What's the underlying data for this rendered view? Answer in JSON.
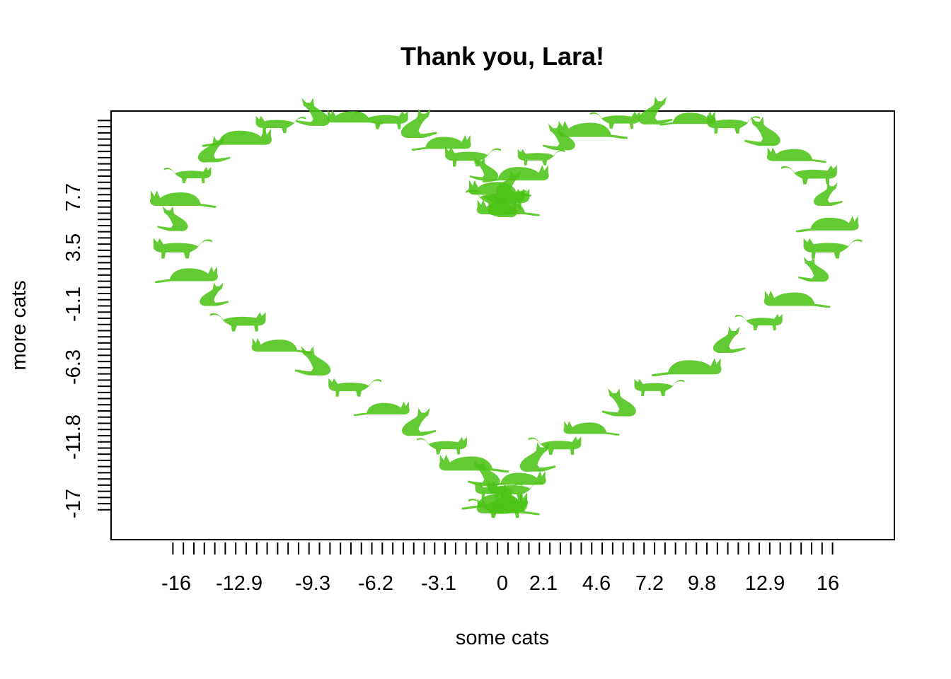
{
  "chart_data": {
    "type": "scatter",
    "title": "Thank you, Lara!",
    "xlabel": "some cats",
    "ylabel": "more cats",
    "xlim": [
      -19,
      19
    ],
    "ylim": [
      -19.2,
      12.4
    ],
    "x_tick_labels": [
      "-16",
      "-12.9",
      "-9.3",
      "-6.2",
      "-3.1",
      "0",
      "2.1",
      "4.6",
      "7.2",
      "9.8",
      "12.9",
      "16"
    ],
    "y_tick_labels": [
      "-17",
      "-11.8",
      "-6.3",
      "-1.1",
      "3.5",
      "7.7"
    ],
    "x_minor_tick_count": 63,
    "y_minor_tick_count": 63,
    "marker": "cat-silhouette-icon",
    "marker_color": "#4CC417",
    "point_count": 64,
    "grid": false,
    "legend": "none"
  }
}
